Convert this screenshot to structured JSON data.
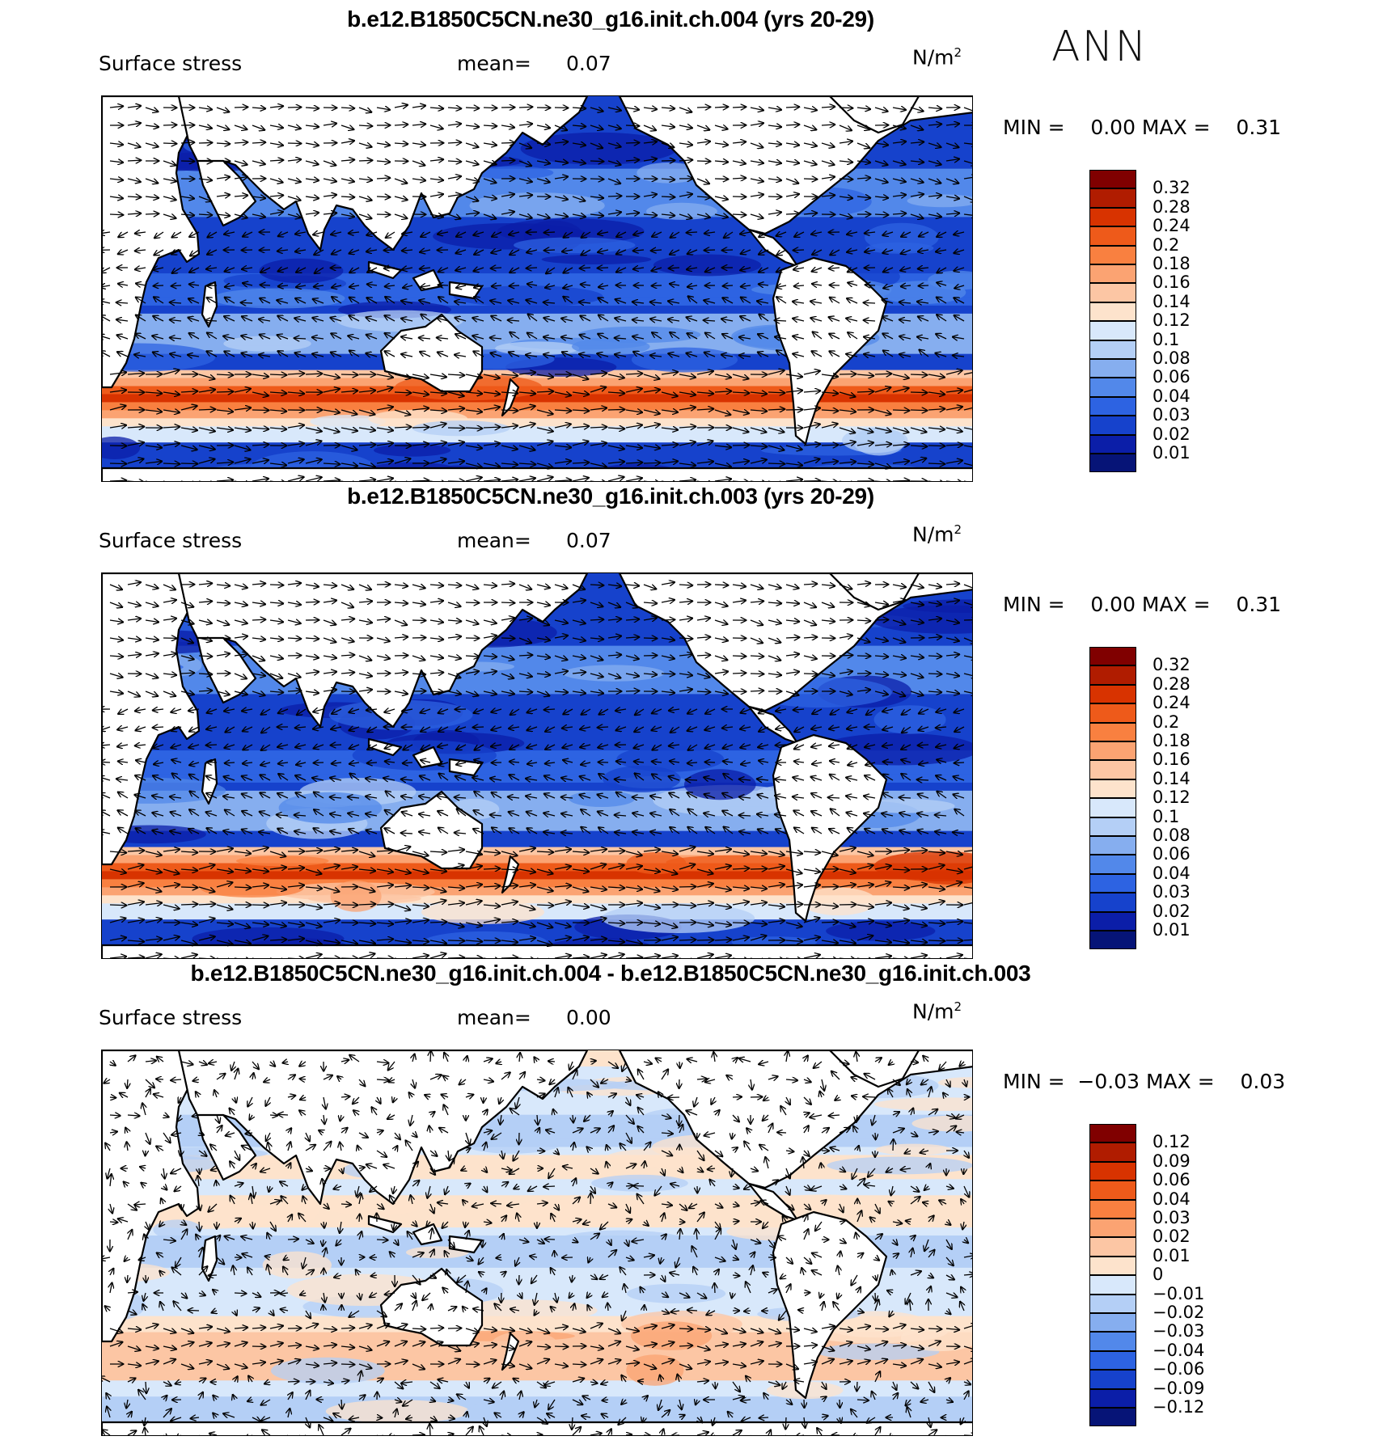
{
  "season": "ANN",
  "panels": [
    {
      "title": "b.e12.B1850C5CN.ne30_g16.init.ch.004 (yrs 20-29)",
      "variable": "Surface stress",
      "mean_label": "mean=",
      "mean_value": "0.07",
      "units_base": "N/m",
      "units_exp": "2",
      "minmax": "MIN =    0.00 MAX =    0.31",
      "kind": "field",
      "colorbar_labels": [
        "0.32",
        "0.28",
        "0.24",
        "0.2",
        "0.18",
        "0.16",
        "0.14",
        "0.12",
        "0.1",
        "0.08",
        "0.06",
        "0.04",
        "0.03",
        "0.02",
        "0.01"
      ]
    },
    {
      "title": "b.e12.B1850C5CN.ne30_g16.init.ch.003 (yrs 20-29)",
      "variable": "Surface stress",
      "mean_label": "mean=",
      "mean_value": "0.07",
      "units_base": "N/m",
      "units_exp": "2",
      "minmax": "MIN =    0.00 MAX =    0.31",
      "kind": "field",
      "colorbar_labels": [
        "0.32",
        "0.28",
        "0.24",
        "0.2",
        "0.18",
        "0.16",
        "0.14",
        "0.12",
        "0.1",
        "0.08",
        "0.06",
        "0.04",
        "0.03",
        "0.02",
        "0.01"
      ]
    },
    {
      "title": "b.e12.B1850C5CN.ne30_g16.init.ch.004 - b.e12.B1850C5CN.ne30_g16.init.ch.003",
      "variable": "Surface stress",
      "mean_label": "mean=",
      "mean_value": "0.00",
      "units_base": "N/m",
      "units_exp": "2",
      "minmax": "MIN =  −0.03 MAX =    0.03",
      "kind": "diff",
      "colorbar_labels": [
        "0.12",
        "0.09",
        "0.06",
        "0.04",
        "0.03",
        "0.02",
        "0.01",
        "0",
        "−0.01",
        "−0.02",
        "−0.03",
        "−0.04",
        "−0.06",
        "−0.09",
        "−0.12"
      ]
    }
  ],
  "colorbar_colors": [
    "#800000",
    "#b01c00",
    "#d83300",
    "#ee5a1a",
    "#f98040",
    "#fba372",
    "#fcc6a4",
    "#fde3cc",
    "#d8e8fb",
    "#b4cff6",
    "#86aeef",
    "#5288ea",
    "#2d63e2",
    "#1642cc",
    "#0b1ea8",
    "#061477"
  ]
}
